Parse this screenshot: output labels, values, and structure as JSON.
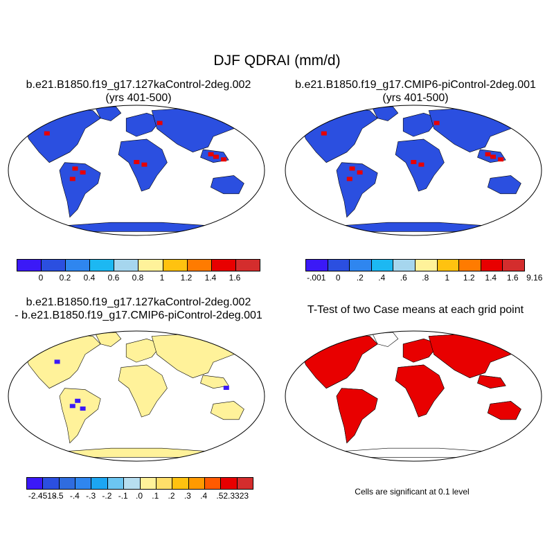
{
  "title": "DJF QDRAI (mm/d)",
  "panels": {
    "top_left": {
      "title_line1": "b.e21.B1850.f19_g17.127kaControl-2deg.002",
      "title_line2": "(yrs 401-500)"
    },
    "top_right": {
      "title_line1": "b.e21.B1850.f19_g17.CMIP6-piControl-2deg.001",
      "title_line2": "(yrs 401-500)"
    },
    "bottom_left": {
      "title_line1": "b.e21.B1850.f19_g17.127kaControl-2deg.002",
      "title_line2": "- b.e21.B1850.f19_g17.CMIP6-piControl-2deg.001"
    },
    "bottom_right": {
      "title_line1": "T-Test of two Case means at each grid point"
    }
  },
  "colorbars": {
    "top_left": {
      "colors": [
        "#3b19f7",
        "#2b4fe0",
        "#2f86ef",
        "#1cb8f2",
        "#a6d6ee",
        "#fff29a",
        "#ffc210",
        "#ff7b00",
        "#e80000",
        "#d42d2d"
      ],
      "labels": [
        "0",
        "0.2",
        "0.4",
        "0.6",
        "0.8",
        "1",
        "1.2",
        "1.4",
        "1.6"
      ]
    },
    "top_right": {
      "colors": [
        "#3b19f7",
        "#2b4fe0",
        "#2f86ef",
        "#1cb8f2",
        "#a6d6ee",
        "#fff29a",
        "#ffc210",
        "#ff7b00",
        "#e80000",
        "#d42d2d"
      ],
      "labels": [
        "-.001",
        "0",
        ".2",
        ".4",
        ".6",
        ".8",
        "1",
        "1.2",
        "1.4",
        "1.6",
        "9.16"
      ]
    },
    "bottom_left": {
      "colors": [
        "#3b19f7",
        "#2b4fe0",
        "#2f6cdf",
        "#2f86ef",
        "#1ca6f2",
        "#6cc6f2",
        "#b7def0",
        "#fff29a",
        "#ffdf6a",
        "#ffc210",
        "#ff9a00",
        "#ff5a00",
        "#e80000",
        "#d42d2d"
      ],
      "labels": [
        "-2.4518",
        "-.5",
        "-.4",
        "-.3",
        "-.2",
        "-.1",
        ".0",
        ".1",
        ".2",
        ".3",
        ".4",
        ".5",
        "2.3323"
      ]
    }
  },
  "note": "Cells are significant at 0.1 level",
  "colors": {
    "land_top": "#2b4fe0",
    "land_diff": "#fff29a",
    "significant": "#e80000",
    "ocean": "#ffffff"
  }
}
